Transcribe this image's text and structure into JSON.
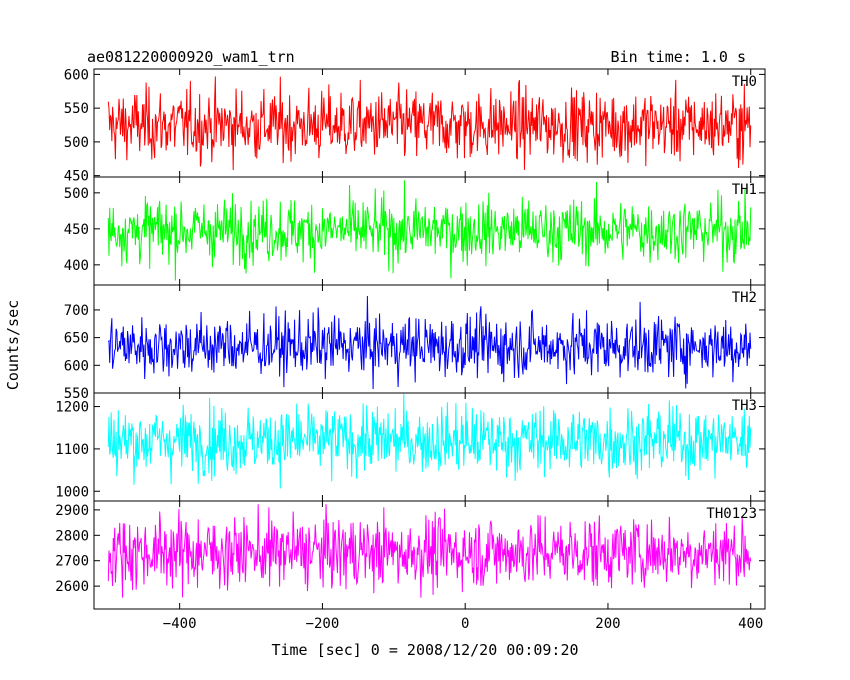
{
  "header": {
    "title": "ae081220000920_wam1_trn",
    "bin_time": "Bin time: 1.0 s"
  },
  "chart_data": {
    "type": "line",
    "title": "ae081220000920_wam1_trn",
    "subtitle": "Bin time: 1.0 s",
    "xlabel": "Time [sec] 0 = 2008/12/20 00:09:20",
    "ylabel": "Counts/sec",
    "xlim": [
      -520,
      420
    ],
    "x_range": [
      -500,
      400
    ],
    "x_step": 1,
    "x_ticks": [
      -400,
      -200,
      0,
      200,
      400
    ],
    "x_tick_labels": [
      "−400",
      "−200",
      "0",
      "200",
      "400"
    ],
    "grid": false,
    "panels": [
      {
        "name": "TH0",
        "color": "#ff0000",
        "ylim": [
          448,
          608
        ],
        "y_ticks": [
          450,
          500,
          550,
          600
        ],
        "mean": 525,
        "noise_sd": 26,
        "spread": [
          470,
          600
        ]
      },
      {
        "name": "TH1",
        "color": "#00ff00",
        "ylim": [
          372,
          522
        ],
        "y_ticks": [
          400,
          450,
          500
        ],
        "mean": 448,
        "noise_sd": 22,
        "spread": [
          385,
          515
        ]
      },
      {
        "name": "TH2",
        "color": "#0000ff",
        "ylim": [
          550,
          745
        ],
        "y_ticks": [
          550,
          600,
          650,
          700
        ],
        "mean": 635,
        "noise_sd": 28,
        "spread": [
          565,
          735
        ]
      },
      {
        "name": "TH3",
        "color": "#00ffff",
        "ylim": [
          977,
          1232
        ],
        "y_ticks": [
          1000,
          1100,
          1200
        ],
        "mean": 1120,
        "noise_sd": 40,
        "spread": [
          1000,
          1230
        ]
      },
      {
        "name": "TH0123",
        "color": "#ff00ff",
        "ylim": [
          2510,
          2935
        ],
        "y_ticks": [
          2600,
          2700,
          2800,
          2900
        ],
        "mean": 2735,
        "noise_sd": 70,
        "spread": [
          2570,
          2930
        ]
      }
    ]
  }
}
